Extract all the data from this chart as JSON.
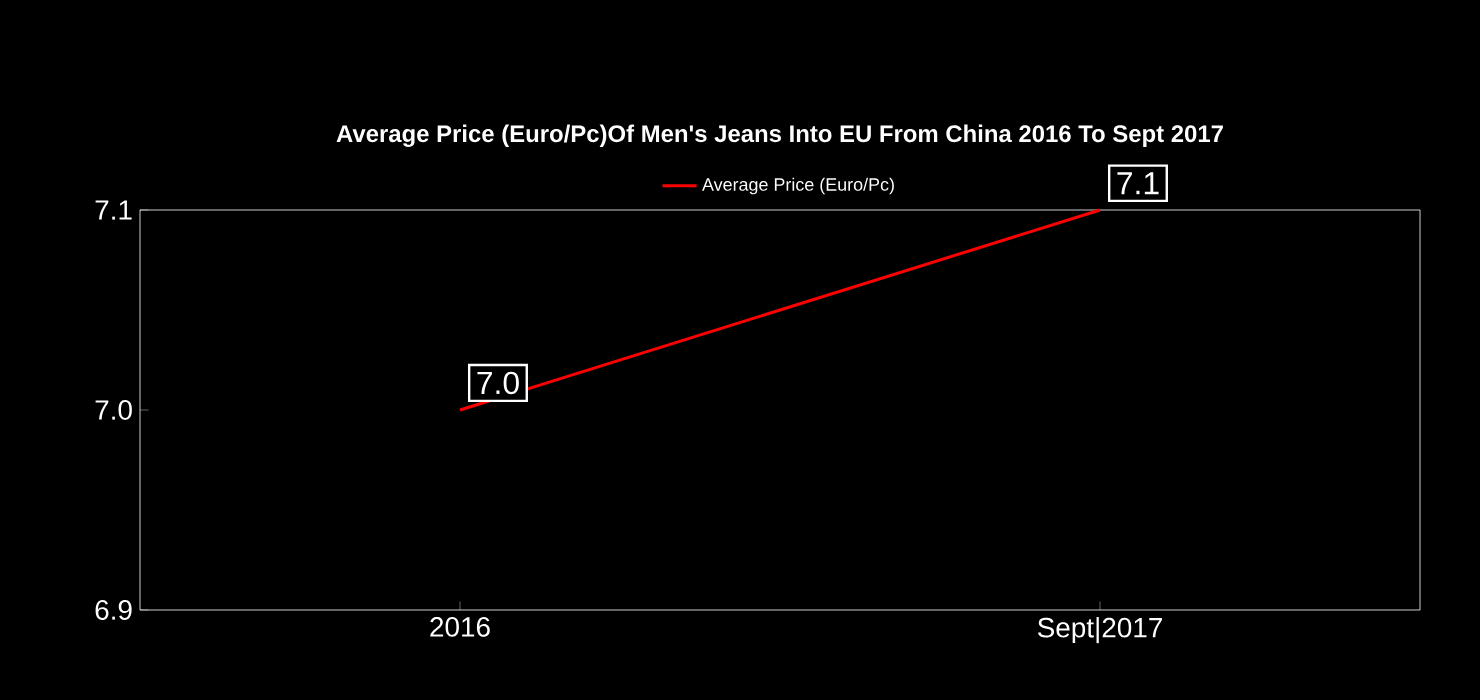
{
  "chart_data": {
    "type": "line",
    "title": "Average Price (Euro/Pc)Of Men's Jeans Into EU From China 2016 To  Sept 2017",
    "categories": [
      "2016",
      "Sept|2017"
    ],
    "series": [
      {
        "name": "Average Price (Euro/Pc)",
        "color": "#ff0000",
        "values": [
          7.0,
          7.1
        ],
        "value_labels": [
          "7.0",
          "7.1"
        ]
      }
    ],
    "ylim": [
      6.9,
      7.1
    ],
    "yticks": [
      {
        "value": 6.9,
        "label": "6.9"
      },
      {
        "value": 7.0,
        "label": "7.0"
      },
      {
        "value": 7.1,
        "label": "7.1"
      }
    ],
    "legend": "top",
    "marker": "none",
    "grid": false
  }
}
